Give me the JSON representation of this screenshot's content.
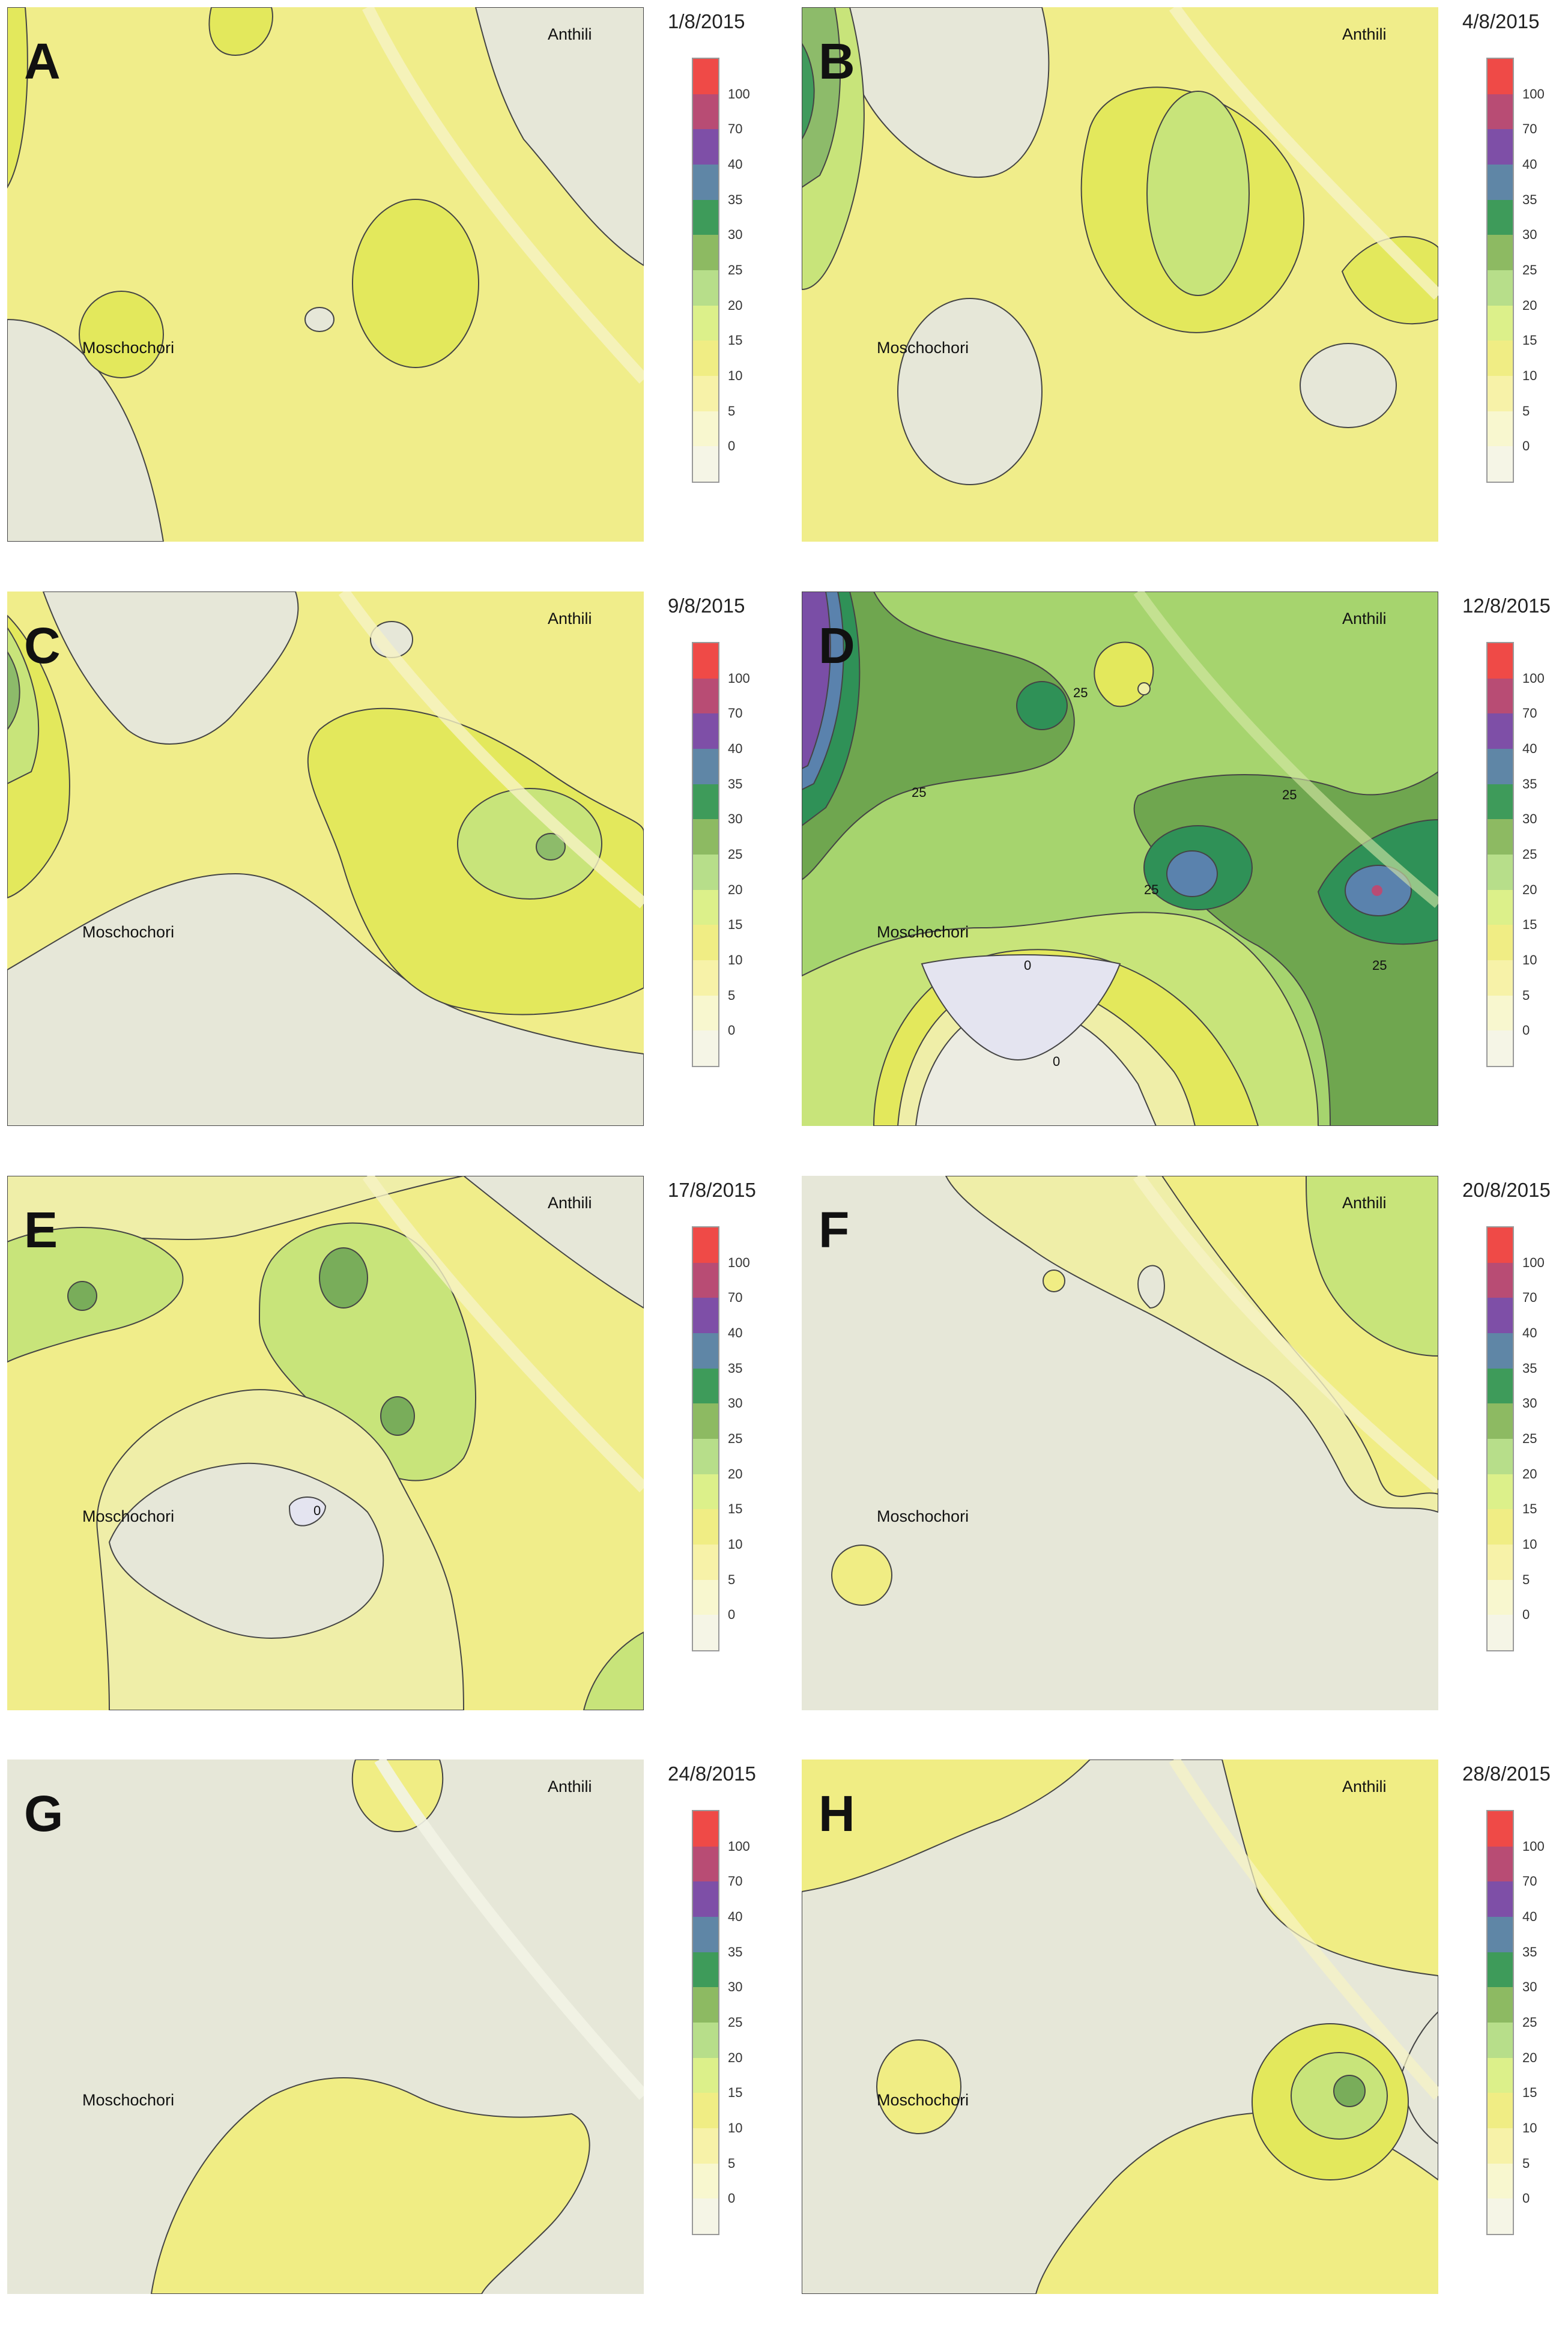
{
  "legend": {
    "ticks": [
      "100",
      "70",
      "40",
      "35",
      "30",
      "25",
      "20",
      "15",
      "10",
      "5",
      "0"
    ],
    "colors": [
      "#f5f5e6",
      "#f8f7cf",
      "#f7f2a8",
      "#f0ed84",
      "#dcf08a",
      "#b7de8a",
      "#8dba62",
      "#3e9b5a",
      "#5f86a6",
      "#7e4fa7",
      "#b84c74",
      "#ef4a47"
    ]
  },
  "panels": [
    {
      "letter": "A",
      "date": "1/8/2015",
      "town_a": "Moschochori",
      "town_b": "Anthili"
    },
    {
      "letter": "B",
      "date": "4/8/2015",
      "town_a": "Moschochori",
      "town_b": "Anthili"
    },
    {
      "letter": "C",
      "date": "9/8/2015",
      "town_a": "Moschochori",
      "town_b": "Anthili"
    },
    {
      "letter": "D",
      "date": "12/8/2015",
      "town_a": "Moschochori",
      "town_b": "Anthili",
      "contour_labels": [
        "25",
        "25",
        "25",
        "25",
        "25",
        "0",
        "0"
      ]
    },
    {
      "letter": "E",
      "date": "17/8/2015",
      "town_a": "Moschochori",
      "town_b": "Anthili",
      "contour_labels": [
        "0"
      ]
    },
    {
      "letter": "F",
      "date": "20/8/2015",
      "town_a": "Moschochori",
      "town_b": "Anthili"
    },
    {
      "letter": "G",
      "date": "24/8/2015",
      "town_a": "Moschochori",
      "town_b": "Anthili"
    },
    {
      "letter": "H",
      "date": "28/8/2015",
      "town_a": "Moschochori",
      "town_b": "Anthili"
    }
  ]
}
